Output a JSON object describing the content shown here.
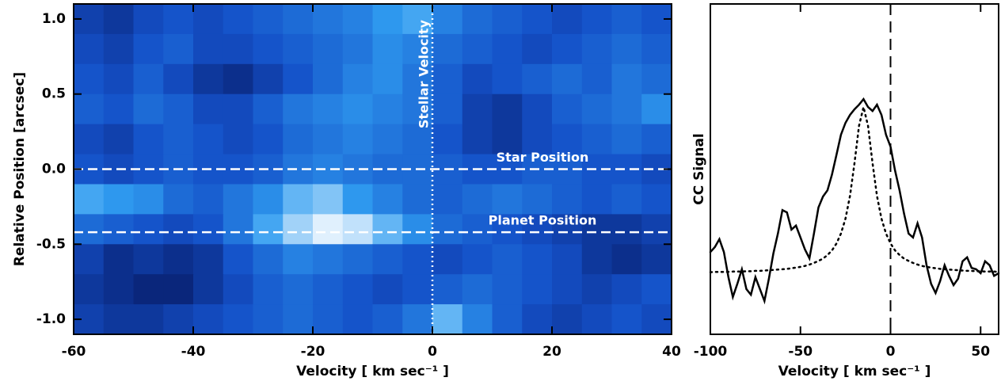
{
  "chart_data": [
    {
      "type": "heatmap",
      "xlabel": "Velocity [ km sec⁻¹ ]",
      "ylabel": "Relative Position [arcsec]",
      "xlim": [
        -60,
        40
      ],
      "ylim": [
        -1.1,
        1.1
      ],
      "xticks": [
        -60,
        -40,
        -20,
        0,
        20,
        40
      ],
      "yticks": [
        {
          "value": -1,
          "label": "-1.0"
        },
        {
          "value": -0.5,
          "label": "-0.5"
        },
        {
          "value": 0,
          "label": "0.0"
        },
        {
          "value": 0.5,
          "label": "0.5"
        },
        {
          "value": 1,
          "label": "1.0"
        }
      ],
      "colormap": [
        "#06145a",
        "#1450c8",
        "#2f9cf0",
        "#ffffff"
      ],
      "x": [
        -57.5,
        -52.5,
        -47.5,
        -42.5,
        -37.5,
        -32.5,
        -27.5,
        -22.5,
        -17.5,
        -12.5,
        -7.5,
        -2.5,
        2.5,
        7.5,
        12.5,
        17.5,
        22.5,
        27.5,
        32.5,
        37.5
      ],
      "y": [
        1.0,
        0.8,
        0.6,
        0.4,
        0.2,
        0.0,
        -0.2,
        -0.4,
        -0.6,
        -0.8,
        -1.0
      ],
      "values": [
        [
          0.25,
          0.2,
          0.3,
          0.35,
          0.3,
          0.35,
          0.4,
          0.45,
          0.5,
          0.55,
          0.65,
          0.7,
          0.55,
          0.45,
          0.4,
          0.35,
          0.3,
          0.35,
          0.4,
          0.35
        ],
        [
          0.3,
          0.25,
          0.35,
          0.4,
          0.3,
          0.3,
          0.35,
          0.4,
          0.45,
          0.5,
          0.6,
          0.55,
          0.45,
          0.4,
          0.35,
          0.3,
          0.35,
          0.4,
          0.45,
          0.4
        ],
        [
          0.35,
          0.3,
          0.4,
          0.3,
          0.2,
          0.15,
          0.25,
          0.35,
          0.45,
          0.55,
          0.6,
          0.5,
          0.4,
          0.3,
          0.35,
          0.4,
          0.45,
          0.4,
          0.5,
          0.45
        ],
        [
          0.4,
          0.35,
          0.45,
          0.4,
          0.3,
          0.3,
          0.4,
          0.5,
          0.55,
          0.6,
          0.55,
          0.5,
          0.4,
          0.25,
          0.2,
          0.3,
          0.4,
          0.45,
          0.5,
          0.6
        ],
        [
          0.3,
          0.25,
          0.35,
          0.4,
          0.35,
          0.3,
          0.35,
          0.45,
          0.5,
          0.55,
          0.5,
          0.45,
          0.35,
          0.25,
          0.2,
          0.3,
          0.35,
          0.4,
          0.45,
          0.4
        ],
        [
          0.35,
          0.3,
          0.35,
          0.4,
          0.35,
          0.35,
          0.4,
          0.5,
          0.55,
          0.5,
          0.45,
          0.45,
          0.4,
          0.35,
          0.35,
          0.4,
          0.4,
          0.35,
          0.35,
          0.3
        ],
        [
          0.7,
          0.65,
          0.6,
          0.45,
          0.4,
          0.5,
          0.6,
          0.75,
          0.8,
          0.65,
          0.55,
          0.45,
          0.4,
          0.45,
          0.5,
          0.45,
          0.4,
          0.35,
          0.4,
          0.35
        ],
        [
          0.45,
          0.4,
          0.35,
          0.3,
          0.35,
          0.5,
          0.7,
          0.85,
          0.95,
          0.9,
          0.75,
          0.6,
          0.45,
          0.4,
          0.35,
          0.3,
          0.25,
          0.2,
          0.2,
          0.25
        ],
        [
          0.25,
          0.15,
          0.2,
          0.15,
          0.2,
          0.35,
          0.45,
          0.55,
          0.5,
          0.45,
          0.4,
          0.35,
          0.3,
          0.35,
          0.4,
          0.35,
          0.3,
          0.2,
          0.15,
          0.2
        ],
        [
          0.2,
          0.15,
          0.1,
          0.1,
          0.2,
          0.3,
          0.4,
          0.45,
          0.4,
          0.35,
          0.3,
          0.35,
          0.4,
          0.45,
          0.4,
          0.35,
          0.3,
          0.25,
          0.3,
          0.35
        ],
        [
          0.25,
          0.2,
          0.2,
          0.25,
          0.3,
          0.35,
          0.4,
          0.45,
          0.4,
          0.35,
          0.4,
          0.5,
          0.75,
          0.55,
          0.4,
          0.3,
          0.25,
          0.3,
          0.35,
          0.3
        ]
      ],
      "annotations": [
        {
          "text": "Stellar Velocity",
          "x": 0,
          "style": "dotted"
        },
        {
          "text": "Star Position",
          "y": 0,
          "style": "dashed"
        },
        {
          "text": "Planet Position",
          "y": -0.42,
          "style": "dashed"
        }
      ]
    },
    {
      "type": "line",
      "xlabel": "Velocity [ km sec⁻¹ ]",
      "ylabel": "CC Signal",
      "xlim": [
        -100,
        60
      ],
      "ylim": [
        0,
        1
      ],
      "xticks": [
        -100,
        -50,
        0,
        50
      ],
      "vlines": [
        0
      ],
      "x": [
        -100,
        -97.5,
        -95,
        -92.5,
        -90,
        -87.5,
        -85,
        -82.5,
        -80,
        -77.5,
        -75,
        -72.5,
        -70,
        -67.5,
        -65,
        -62.5,
        -60,
        -57.5,
        -55,
        -52.5,
        -50,
        -47.5,
        -45,
        -42.5,
        -40,
        -37.5,
        -35,
        -32.5,
        -30,
        -27.5,
        -25,
        -22.5,
        -20,
        -17.5,
        -15,
        -12.5,
        -10,
        -7.5,
        -5,
        -2.5,
        0,
        2.5,
        5,
        7.5,
        10,
        12.5,
        15,
        17.5,
        20,
        22.5,
        25,
        27.5,
        30,
        32.5,
        35,
        37.5,
        40,
        42.5,
        45,
        47.5,
        50,
        52.5,
        55,
        57.5,
        60
      ],
      "series": [
        {
          "color": "#000000",
          "style": "solid",
          "values": [
            0.249,
            0.264,
            0.288,
            0.249,
            0.173,
            0.113,
            0.153,
            0.197,
            0.137,
            0.12,
            0.173,
            0.137,
            0.101,
            0.168,
            0.245,
            0.305,
            0.376,
            0.369,
            0.317,
            0.329,
            0.293,
            0.257,
            0.23,
            0.305,
            0.384,
            0.417,
            0.436,
            0.484,
            0.544,
            0.604,
            0.64,
            0.664,
            0.681,
            0.695,
            0.712,
            0.688,
            0.676,
            0.695,
            0.664,
            0.604,
            0.568,
            0.496,
            0.436,
            0.365,
            0.305,
            0.293,
            0.336,
            0.293,
            0.209,
            0.153,
            0.125,
            0.161,
            0.209,
            0.177,
            0.149,
            0.168,
            0.221,
            0.233,
            0.201,
            0.197,
            0.185,
            0.221,
            0.209,
            0.177,
            0.185
          ]
        },
        {
          "color": "#000000",
          "style": "dotted",
          "values": [
            0.188,
            0.189,
            0.189,
            0.189,
            0.189,
            0.19,
            0.19,
            0.19,
            0.191,
            0.191,
            0.192,
            0.192,
            0.193,
            0.194,
            0.195,
            0.196,
            0.197,
            0.198,
            0.2,
            0.202,
            0.204,
            0.207,
            0.211,
            0.216,
            0.222,
            0.229,
            0.24,
            0.254,
            0.275,
            0.305,
            0.35,
            0.419,
            0.518,
            0.631,
            0.688,
            0.631,
            0.518,
            0.419,
            0.35,
            0.305,
            0.275,
            0.254,
            0.24,
            0.229,
            0.222,
            0.216,
            0.211,
            0.207,
            0.204,
            0.202,
            0.2,
            0.198,
            0.197,
            0.196,
            0.195,
            0.194,
            0.193,
            0.192,
            0.192,
            0.191,
            0.191,
            0.19,
            0.19,
            0.19,
            0.189
          ]
        }
      ]
    }
  ]
}
